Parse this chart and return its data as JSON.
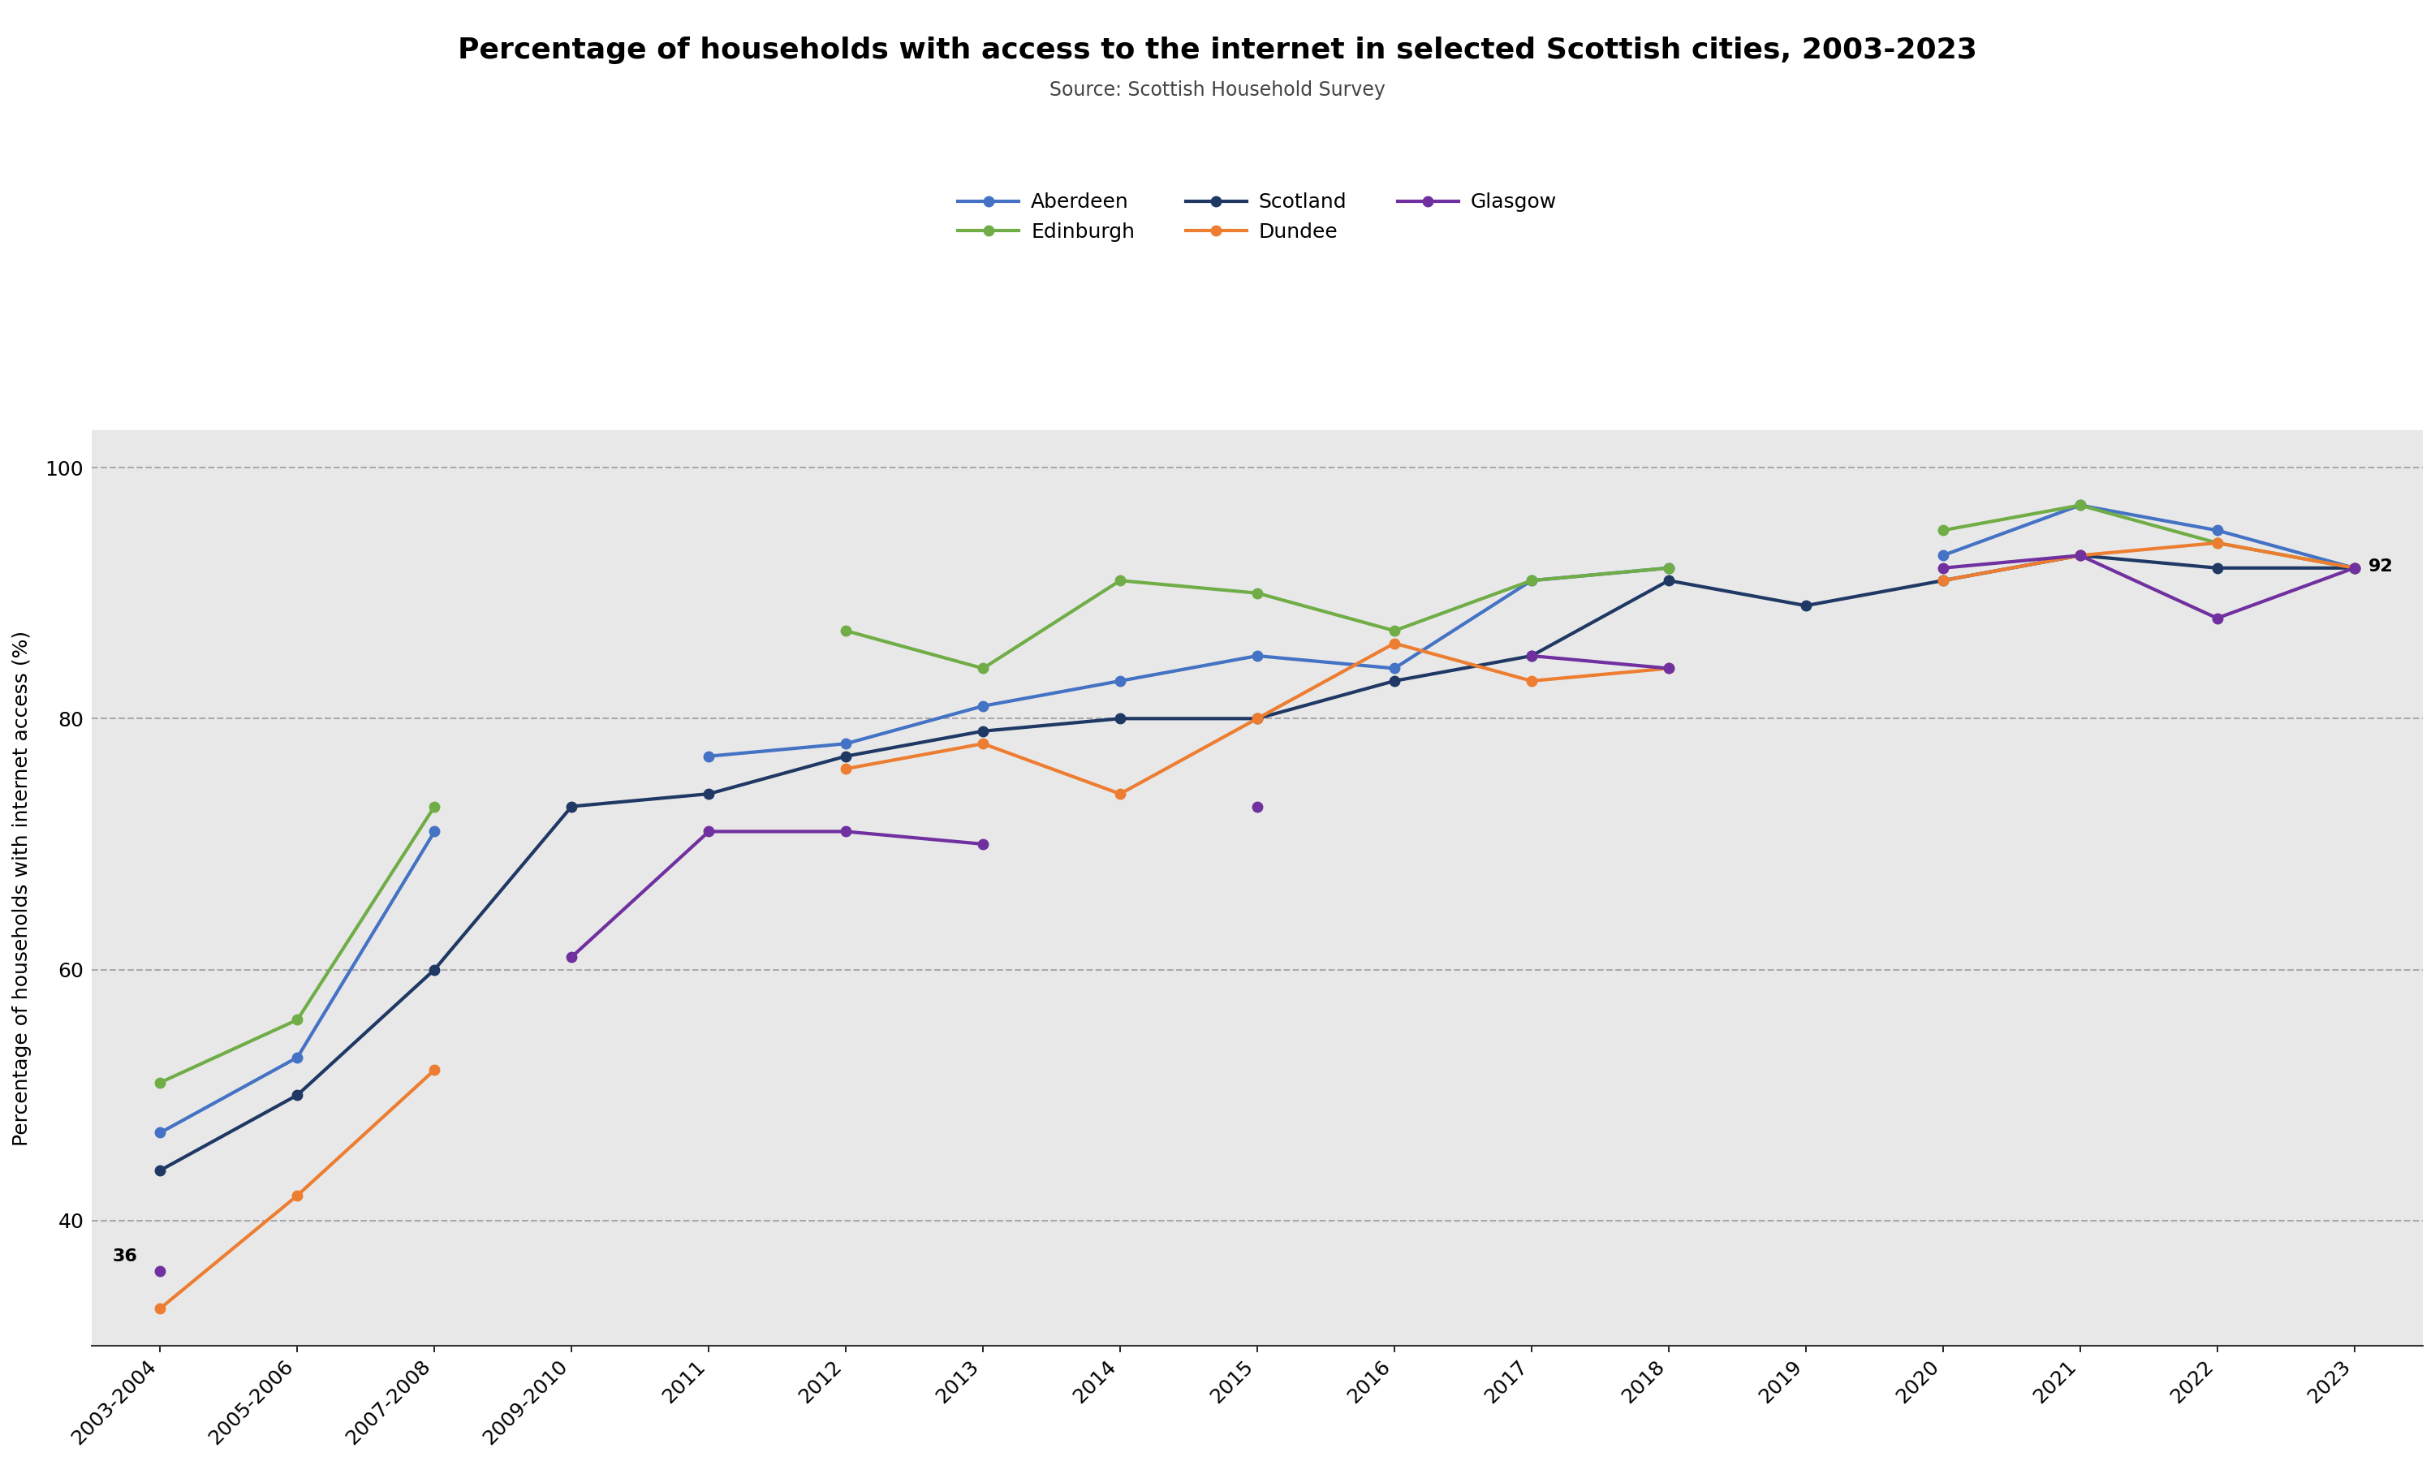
{
  "title": "Percentage of households with access to the internet in selected Scottish cities, 2003-2023",
  "subtitle": "Source: Scottish Household Survey",
  "ylabel": "Percentage of households with internet access (%)",
  "background_color": "#e8e8e8",
  "x_labels": [
    "2003-2004",
    "2005-2006",
    "2007-2008",
    "2009-2010",
    "2011",
    "2012",
    "2013",
    "2014",
    "2015",
    "2016",
    "2017",
    "2018",
    "2019",
    "2020",
    "2021",
    "2022",
    "2023"
  ],
  "series": {
    "Aberdeen": {
      "color": "#4472c4",
      "values": [
        47,
        53,
        71,
        null,
        77,
        78,
        81,
        83,
        85,
        84,
        91,
        92,
        null,
        93,
        97,
        95,
        92
      ]
    },
    "Edinburgh": {
      "color": "#70ad47",
      "values": [
        51,
        56,
        73,
        null,
        null,
        87,
        84,
        91,
        90,
        87,
        91,
        92,
        null,
        95,
        97,
        94,
        92
      ]
    },
    "Scotland": {
      "color": "#1f3864",
      "values": [
        44,
        50,
        60,
        73,
        74,
        77,
        79,
        80,
        80,
        83,
        85,
        91,
        89,
        91,
        93,
        92,
        92
      ]
    },
    "Dundee": {
      "color": "#ed7d31",
      "values": [
        33,
        42,
        52,
        null,
        null,
        76,
        78,
        74,
        80,
        86,
        83,
        84,
        null,
        91,
        93,
        94,
        92
      ]
    },
    "Glasgow": {
      "color": "#7030a0",
      "values": [
        36,
        null,
        null,
        61,
        71,
        71,
        70,
        null,
        73,
        null,
        85,
        84,
        null,
        92,
        93,
        88,
        92
      ]
    }
  },
  "ylim": [
    30,
    103
  ],
  "yticks": [
    40,
    60,
    80,
    100
  ],
  "title_fontsize": 26,
  "subtitle_fontsize": 17,
  "axis_label_fontsize": 18,
  "tick_fontsize": 18,
  "legend_fontsize": 18,
  "linewidth": 3.0,
  "markersize": 9
}
